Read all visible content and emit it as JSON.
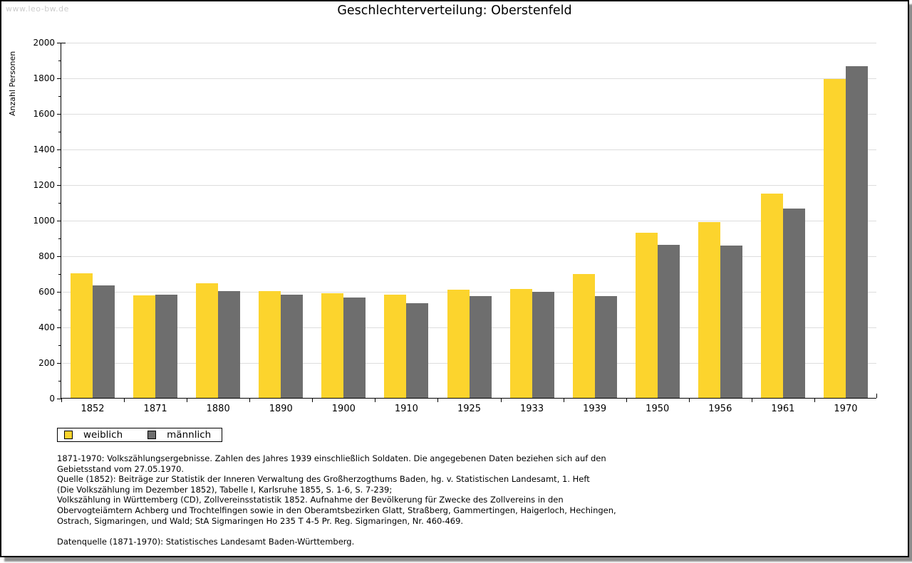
{
  "watermark": "www.leo-bw.de",
  "title": "Geschlechterverteilung: Oberstenfeld",
  "colors": {
    "female": "#FCD42D",
    "male": "#6E6E6E",
    "gridline": "#DDDDDD",
    "watermark": "#CCCCCC",
    "axis": "#000000",
    "background": "#FFFFFF"
  },
  "chart_data": {
    "type": "bar",
    "title": "Geschlechterverteilung: Oberstenfeld",
    "xlabel": "",
    "ylabel": "Anzahl Personen",
    "ylim": [
      0,
      2000
    ],
    "yticks": {
      "major": 200,
      "minor": 100
    },
    "grid": true,
    "legend_position": "below-left",
    "categories": [
      "1852",
      "1871",
      "1880",
      "1890",
      "1900",
      "1910",
      "1925",
      "1933",
      "1939",
      "1950",
      "1956",
      "1961",
      "1970"
    ],
    "series": [
      {
        "name": "weiblich",
        "color": "#FCD42D",
        "values": [
          700,
          576,
          645,
          599,
          588,
          579,
          608,
          612,
          697,
          928,
          988,
          1147,
          1791
        ]
      },
      {
        "name": "männlich",
        "color": "#6E6E6E",
        "values": [
          632,
          581,
          601,
          580,
          566,
          534,
          573,
          597,
          573,
          861,
          858,
          1066,
          1863
        ]
      }
    ]
  },
  "legend": {
    "items": [
      {
        "label": "weiblich",
        "color": "#FCD42D"
      },
      {
        "label": "männlich",
        "color": "#6E6E6E"
      }
    ]
  },
  "footnotes": {
    "lines": [
      "1871-1970: Volkszählungsergebnisse. Zahlen des Jahres 1939 einschließlich Soldaten. Die angegebenen Daten beziehen sich auf den",
      "Gebietsstand vom 27.05.1970.",
      "Quelle (1852): Beiträge zur Statistik der Inneren Verwaltung des Großherzogthums Baden, hg. v. Statistischen Landesamt, 1. Heft",
      "(Die Volkszählung im Dezember 1852), Tabelle I, Karlsruhe 1855, S. 1-6, S. 7-239;",
      "Volkszählung in Württemberg (CD), Zollvereinsstatistik 1852. Aufnahme der Bevölkerung für Zwecke des Zollvereins in den",
      "Obervogteiämtern Achberg und Trochtelfingen sowie in den Oberamtsbezirken Glatt, Straßberg, Gammertingen, Haigerloch, Hechingen,",
      "Ostrach, Sigmaringen, und Wald; StA Sigmaringen Ho 235 T 4-5 Pr. Reg. Sigmaringen, Nr. 460-469."
    ],
    "datasource": "Datenquelle (1871-1970): Statistisches Landesamt Baden-Württemberg."
  }
}
